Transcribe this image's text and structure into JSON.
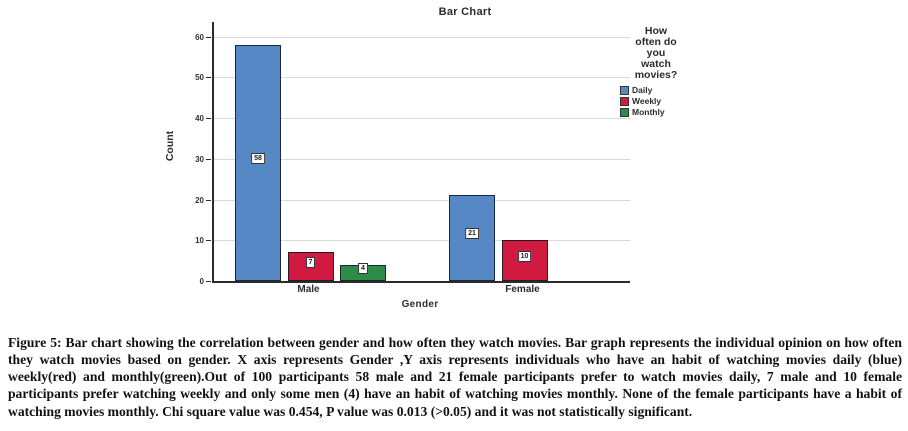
{
  "figure": {
    "caption": "Figure 5: Bar chart showing the correlation between gender and how often they watch movies. Bar graph represents the individual opinion on how often they watch movies based on gender. X axis represents Gender ,Y axis represents individuals who have an habit of watching movies daily (blue) weekly(red) and monthly(green).Out of 100 participants 58 male and 21 female participants prefer to watch movies daily, 7 male and 10 female participants prefer watching weekly and only some men (4) have an habit of watching movies monthly. None of the female participants have a habit of watching movies monthly. Chi square value was 0.454, P value was 0.013 (>0.05) and it was not statistically significant."
  },
  "chart_data": {
    "type": "bar",
    "title": "Bar Chart",
    "xlabel": "Gender",
    "ylabel": "Count",
    "categories": [
      "Male",
      "Female"
    ],
    "series": [
      {
        "name": "Daily",
        "color": "#5588c5",
        "values": [
          58,
          21
        ]
      },
      {
        "name": "Weekly",
        "color": "#d01a3f",
        "values": [
          7,
          10
        ]
      },
      {
        "name": "Monthly",
        "color": "#2e8c46",
        "values": [
          4,
          0
        ]
      }
    ],
    "ylim": [
      0,
      60
    ],
    "yticks": [
      0,
      10,
      20,
      30,
      40,
      50,
      60
    ],
    "grid": true,
    "bar_labels": true,
    "legend": {
      "position": "right",
      "title_lines": [
        "How",
        "often do",
        "you",
        "watch",
        "movies?"
      ],
      "entries": [
        {
          "label": "Daily",
          "color": "#5588c5"
        },
        {
          "label": "Weekly",
          "color": "#d01a3f"
        },
        {
          "label": "Monthly",
          "color": "#2e8c46"
        }
      ]
    },
    "colors": {
      "grid": "#d9d9d9",
      "axis": "#2b2b2b"
    }
  }
}
